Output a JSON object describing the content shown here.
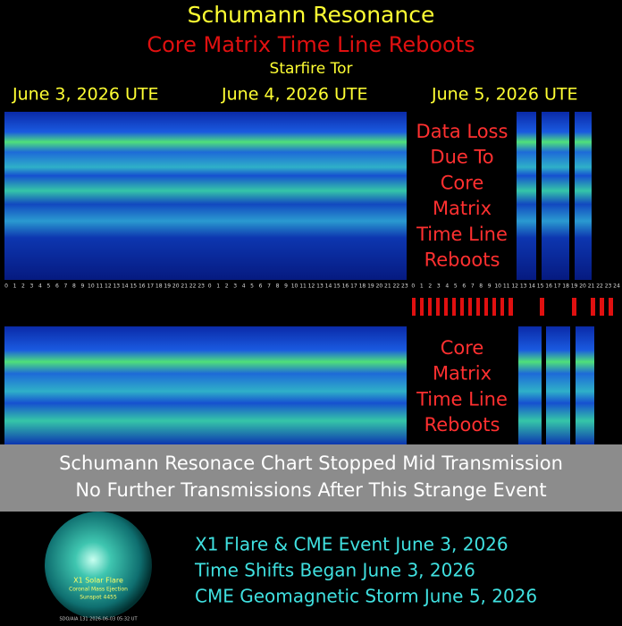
{
  "header": {
    "title": "Schumann Resonance",
    "subtitle": "Core Matrix Time Line Reboots",
    "byline": "Starfire Tor"
  },
  "dates": [
    "June 3, 2026 UTE",
    "June 4, 2026 UTE",
    "June 5, 2026 UTE"
  ],
  "hour_labels": [
    0,
    1,
    2,
    3,
    4,
    5,
    6,
    7,
    8,
    9,
    10,
    11,
    12,
    13,
    14,
    15,
    16,
    17,
    18,
    19,
    20,
    21,
    22,
    23,
    0,
    1,
    2,
    3,
    4,
    5,
    6,
    7,
    8,
    9,
    10,
    11,
    12,
    13,
    14,
    15,
    16,
    17,
    18,
    19,
    20,
    21,
    22,
    23,
    0,
    1,
    2,
    3,
    4,
    5,
    6,
    7,
    8,
    9,
    10,
    11,
    12,
    13,
    14,
    15,
    16,
    17,
    18,
    19,
    20,
    21,
    22,
    23,
    24
  ],
  "overlay_top": [
    "Data Loss",
    "Due To",
    "Core",
    "Matrix",
    "Time Line",
    "Reboots"
  ],
  "overlay_bottom": [
    "Core",
    "Matrix",
    "Time Line",
    "Reboots"
  ],
  "banner": [
    "Schumann Resonace Chart Stopped Mid Transmission",
    "No Further Transmissions After This Strange Event"
  ],
  "sun_image": {
    "lines": [
      "X1 Solar Flare",
      "Coronal Mass Ejection",
      "Sunspot 4455"
    ],
    "caption": "SDO/AIA 131 2026-06-03 05:32 UT"
  },
  "footer": [
    "X1 Flare & CME Event June 3, 2026",
    "Time Shifts Began June 3, 2026",
    "CME Geomagnetic Storm June 5, 2026"
  ]
}
